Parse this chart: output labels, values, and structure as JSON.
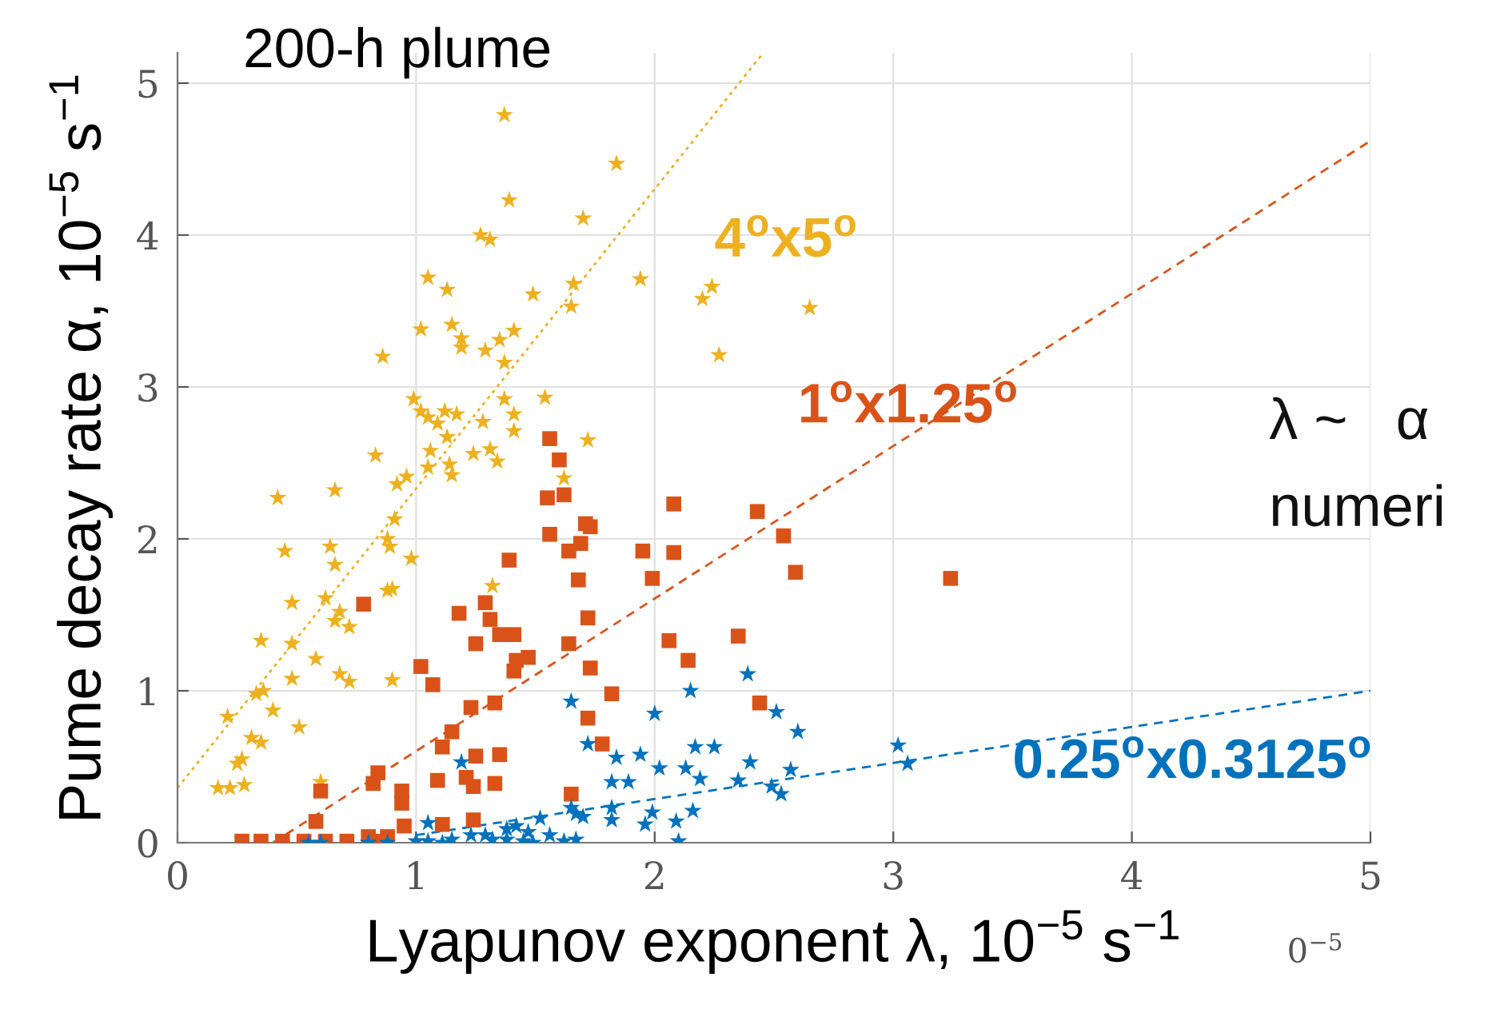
{
  "chart_data": {
    "type": "scatter",
    "title": "200-h plume",
    "xlabel": "Lyapunov exponent λ, 10$^{−5}$ s$^{−1}$",
    "ylabel": "Pume decay rate α, 10$^{−5}$ s$^{−1}$",
    "xlim": [
      0,
      5
    ],
    "ylim": [
      0,
      5.2
    ],
    "xticks": [
      0,
      1,
      2,
      3,
      4,
      5
    ],
    "yticks": [
      0,
      1,
      2,
      3,
      4,
      5
    ],
    "grid": true,
    "legend": false,
    "annotations": [
      "λ ~   α",
      "numeri",
      "0$^{−5}$"
    ],
    "series": [
      {
        "name": "4$^{o}$x5$^{o}$",
        "marker": "star",
        "color": "#edb120",
        "x": [
          1.37,
          1.84,
          1.39,
          1.27,
          1.31,
          1.7,
          1.05,
          1.13,
          1.49,
          1.66,
          1.65,
          1.94,
          2.2,
          2.24,
          2.27,
          2.65,
          1.02,
          1.15,
          1.19,
          1.19,
          1.29,
          1.35,
          1.41,
          1.37,
          0.86,
          0.99,
          1.02,
          1.05,
          1.09,
          1.12,
          1.17,
          1.13,
          1.28,
          1.37,
          1.41,
          1.41,
          1.54,
          1.72,
          0.83,
          1.06,
          1.05,
          1.14,
          1.15,
          1.24,
          1.31,
          1.34,
          1.62,
          0.96,
          0.92,
          0.66,
          0.42,
          0.91,
          0.88,
          0.89,
          0.45,
          0.64,
          0.66,
          0.98,
          0.88,
          0.9,
          0.62,
          0.48,
          0.68,
          0.66,
          0.72,
          1.32,
          0.35,
          0.48,
          0.58,
          0.48,
          0.68,
          0.72,
          0.9,
          0.33,
          0.36,
          0.21,
          0.4,
          0.51,
          0.31,
          0.35,
          0.25,
          0.27,
          0.17,
          0.22,
          0.28,
          0.6
        ],
        "values": [
          4.79,
          4.47,
          4.23,
          4.0,
          3.97,
          4.11,
          3.72,
          3.64,
          3.61,
          3.68,
          3.53,
          3.71,
          3.58,
          3.66,
          3.21,
          3.52,
          3.38,
          3.41,
          3.32,
          3.26,
          3.24,
          3.31,
          3.37,
          3.16,
          3.2,
          2.92,
          2.84,
          2.8,
          2.76,
          2.84,
          2.82,
          2.67,
          2.77,
          2.92,
          2.82,
          2.71,
          2.93,
          2.65,
          2.55,
          2.58,
          2.47,
          2.49,
          2.42,
          2.56,
          2.59,
          2.51,
          2.4,
          2.41,
          2.36,
          2.32,
          2.27,
          2.13,
          2.0,
          1.95,
          1.92,
          1.95,
          1.83,
          1.87,
          1.66,
          1.67,
          1.61,
          1.58,
          1.52,
          1.46,
          1.42,
          1.69,
          1.33,
          1.31,
          1.21,
          1.08,
          1.11,
          1.06,
          1.07,
          0.98,
          1.0,
          0.83,
          0.87,
          0.76,
          0.69,
          0.66,
          0.52,
          0.55,
          0.36,
          0.36,
          0.38,
          0.4
        ]
      },
      {
        "name": "1$^{o}$x1.25$^{o}$",
        "marker": "square",
        "color": "#d95319",
        "x": [
          1.56,
          1.6,
          1.55,
          1.62,
          2.08,
          2.43,
          2.54,
          2.59,
          3.24,
          1.56,
          1.71,
          1.73,
          1.69,
          1.64,
          1.39,
          1.95,
          2.08,
          1.99,
          1.68,
          1.72,
          1.64,
          2.06,
          2.14,
          2.35,
          1.73,
          1.82,
          1.72,
          1.78,
          2.44,
          0.78,
          1.29,
          1.18,
          1.31,
          1.35,
          1.41,
          1.25,
          1.47,
          1.42,
          1.41,
          1.02,
          1.07,
          1.23,
          1.33,
          1.15,
          1.11,
          1.25,
          1.35,
          0.84,
          0.82,
          1.09,
          1.21,
          1.24,
          1.33,
          0.94,
          0.94,
          0.6,
          1.65,
          0.58,
          1.11,
          1.24,
          0.95,
          0.8,
          0.88,
          0.27,
          0.35,
          0.44,
          0.53,
          0.62,
          0.71,
          0.82
        ],
        "values": [
          2.66,
          2.52,
          2.27,
          2.29,
          2.23,
          2.18,
          2.02,
          1.78,
          1.74,
          2.03,
          2.1,
          2.08,
          1.97,
          1.92,
          1.86,
          1.92,
          1.91,
          1.74,
          1.73,
          1.48,
          1.31,
          1.33,
          1.2,
          1.36,
          1.15,
          0.98,
          0.82,
          0.65,
          0.92,
          1.57,
          1.58,
          1.51,
          1.47,
          1.37,
          1.37,
          1.31,
          1.22,
          1.2,
          1.13,
          1.16,
          1.04,
          0.89,
          0.92,
          0.73,
          0.63,
          0.57,
          0.58,
          0.46,
          0.39,
          0.41,
          0.43,
          0.37,
          0.39,
          0.34,
          0.26,
          0.34,
          0.32,
          0.14,
          0.12,
          0.15,
          0.11,
          0.04,
          0.04,
          0.01,
          0.01,
          0.01,
          0.01,
          0.01,
          0.01,
          0.01
        ]
      },
      {
        "name": "0.25$^{o}$x0.3125$^{o}$",
        "marker": "star",
        "color": "#0072bd",
        "x": [
          2.15,
          2.39,
          2.0,
          2.51,
          2.6,
          3.02,
          3.06,
          2.17,
          2.25,
          1.84,
          1.94,
          2.02,
          2.13,
          2.4,
          2.57,
          2.19,
          2.35,
          1.89,
          1.82,
          2.49,
          2.53,
          1.82,
          1.82,
          1.96,
          1.99,
          2.09,
          2.16,
          2.1,
          1.65,
          1.72,
          1.19,
          1.65,
          1.67,
          1.7,
          1.52,
          1.05,
          1.38,
          1.42,
          1.23,
          1.29,
          1.47,
          1.56,
          1.45,
          1.49,
          1.62,
          1.67,
          1.0,
          1.05,
          1.11,
          1.15,
          0.88,
          0.8,
          0.6,
          0.55,
          1.32,
          1.38
        ],
        "values": [
          1.0,
          1.11,
          0.85,
          0.86,
          0.73,
          0.64,
          0.52,
          0.63,
          0.63,
          0.56,
          0.58,
          0.49,
          0.49,
          0.53,
          0.48,
          0.42,
          0.41,
          0.4,
          0.4,
          0.37,
          0.32,
          0.23,
          0.15,
          0.12,
          0.2,
          0.14,
          0.21,
          0.01,
          0.93,
          0.65,
          0.53,
          0.23,
          0.19,
          0.17,
          0.16,
          0.13,
          0.09,
          0.11,
          0.05,
          0.05,
          0.07,
          0.05,
          0.01,
          0.0,
          0.01,
          0.02,
          0.01,
          0.01,
          0.0,
          0.02,
          0.0,
          0.0,
          0.0,
          0.0,
          0.02,
          0.02
        ]
      },
      {
        "type": "line",
        "line_style": "dotted",
        "color": "#edb120",
        "x": [
          0,
          2.45
        ],
        "values": [
          0.36,
          5.19
        ]
      },
      {
        "type": "line",
        "line_style": "dashed",
        "color": "#d95319",
        "x": [
          0.4,
          5
        ],
        "values": [
          0,
          4.62
        ]
      },
      {
        "type": "line",
        "line_style": "dashed",
        "color": "#0072bd",
        "x": [
          1.0,
          5
        ],
        "values": [
          0.05,
          1.0
        ]
      }
    ]
  }
}
